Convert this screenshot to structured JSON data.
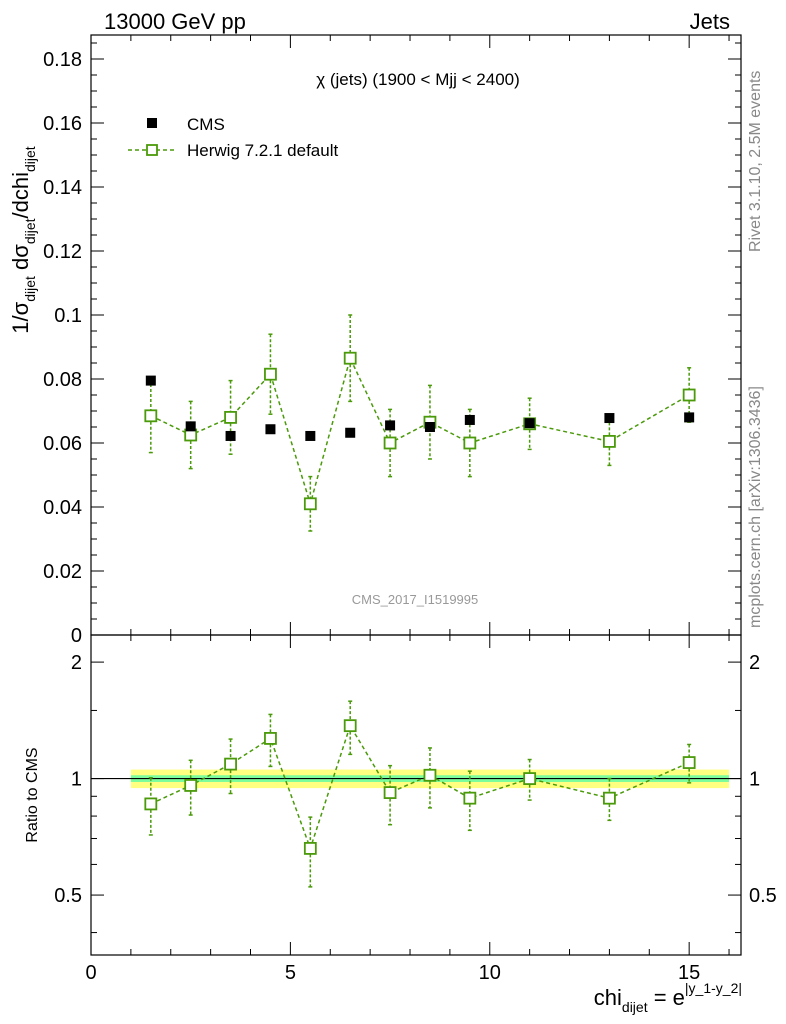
{
  "header": {
    "left": "13000 GeV pp",
    "right": "Jets"
  },
  "side_labels": {
    "rivet": "Rivet 3.1.10,  2.5M events",
    "mcplots": "mcplots.cern.ch [arXiv:1306.3436]"
  },
  "colors": {
    "data": "#000000",
    "mc": "#4a9a0a",
    "band_green": "#7cfc9c",
    "band_yellow": "#ffff80"
  },
  "chart_data": [
    {
      "type": "scatter",
      "panel": "main",
      "title": "χ (jets) (1900 < Mjj < 2400)",
      "watermark": "CMS_2017_I1519995",
      "ylabel": {
        "main": "1/σ",
        "sub1": "dijet",
        "mid": " dσ",
        "sub2": "dijet",
        "end": "/dchi",
        "sub3": "dijet"
      },
      "ylim": [
        0,
        0.1875
      ],
      "xlim": [
        0,
        16.3
      ],
      "y_ticks": [
        0,
        0.02,
        0.04,
        0.06,
        0.08,
        0.1,
        0.12,
        0.14,
        0.16,
        0.18
      ],
      "y_tick_labels": [
        "0",
        "0.02",
        "0.04",
        "0.06",
        "0.08",
        "0.1",
        "0.12",
        "0.14",
        "0.16",
        "0.18"
      ],
      "legend": [
        {
          "name": "CMS",
          "marker": "filled-square"
        },
        {
          "name": "Herwig 7.2.1 default",
          "marker": "open-square-dashed"
        }
      ],
      "series": [
        {
          "name": "CMS",
          "x": [
            1.5,
            2.5,
            3.5,
            4.5,
            5.5,
            6.5,
            7.5,
            8.5,
            9.5,
            11,
            13,
            15
          ],
          "y": [
            0.0795,
            0.0652,
            0.0622,
            0.0643,
            0.0622,
            0.0632,
            0.0655,
            0.065,
            0.0672,
            0.0662,
            0.0678,
            0.068
          ],
          "yerr": [
            0.0012,
            0.0012,
            0.0008,
            0.0006,
            0.0006,
            0.0006,
            0.0008,
            0.0008,
            0.0008,
            0.0008,
            0.0012,
            0.0012
          ]
        },
        {
          "name": "Herwig 7.2.1 default",
          "x": [
            1.5,
            2.5,
            3.5,
            4.5,
            5.5,
            6.5,
            7.5,
            8.5,
            9.5,
            11,
            13,
            15
          ],
          "y": [
            0.0685,
            0.0625,
            0.068,
            0.0815,
            0.041,
            0.0865,
            0.06,
            0.0665,
            0.06,
            0.066,
            0.0605,
            0.075
          ],
          "yerr": [
            0.0115,
            0.0105,
            0.0115,
            0.0125,
            0.0085,
            0.0135,
            0.0105,
            0.0115,
            0.0105,
            0.008,
            0.0075,
            0.0085
          ]
        }
      ]
    },
    {
      "type": "scatter",
      "panel": "ratio",
      "ylabel": "Ratio to CMS",
      "ylim": [
        0.35,
        2.35
      ],
      "log_y": true,
      "xlim": [
        0,
        16.3
      ],
      "x_ticks": [
        0,
        5,
        10,
        15
      ],
      "x_tick_labels": [
        "0",
        "5",
        "10",
        "15"
      ],
      "y_tick_labels": [
        {
          "value": 0.5,
          "label": "0.5"
        },
        {
          "value": 1,
          "label": "1"
        },
        {
          "value": 2,
          "label": "2"
        }
      ],
      "xlabel": {
        "main": "chi",
        "sub": "dijet",
        "eq": " = e",
        "sup": "|y_1-y_2|"
      },
      "band": {
        "x": [
          1,
          16
        ],
        "green_half": 0.02,
        "yellow_half": 0.055
      },
      "series": [
        {
          "name": "Herwig 7.2.1 default",
          "x": [
            1.5,
            2.5,
            3.5,
            4.5,
            5.5,
            6.5,
            7.5,
            8.5,
            9.5,
            11,
            13,
            15
          ],
          "y": [
            0.86,
            0.96,
            1.09,
            1.27,
            0.66,
            1.37,
            0.92,
            1.02,
            0.89,
            1.0,
            0.89,
            1.1
          ],
          "yerr": [
            0.145,
            0.155,
            0.175,
            0.195,
            0.135,
            0.215,
            0.16,
            0.18,
            0.155,
            0.12,
            0.11,
            0.125
          ]
        }
      ]
    }
  ]
}
